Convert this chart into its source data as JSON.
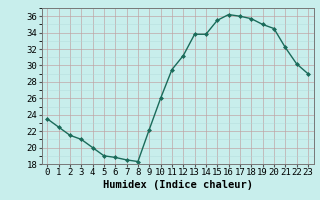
{
  "x": [
    0,
    1,
    2,
    3,
    4,
    5,
    6,
    7,
    8,
    9,
    10,
    11,
    12,
    13,
    14,
    15,
    16,
    17,
    18,
    19,
    20,
    21,
    22,
    23
  ],
  "y": [
    23.5,
    22.5,
    21.5,
    21.0,
    20.0,
    19.0,
    18.8,
    18.5,
    18.3,
    22.2,
    26.0,
    29.5,
    31.2,
    33.8,
    33.8,
    35.5,
    36.2,
    36.0,
    35.7,
    35.0,
    34.5,
    32.2,
    30.2,
    29.0
  ],
  "line_color": "#1a6b5a",
  "marker": "D",
  "marker_size": 2.0,
  "background_color": "#c8eeec",
  "grid_color_minor": "#b0d8d8",
  "grid_color_major": "#c0a0a0",
  "xlabel": "Humidex (Indice chaleur)",
  "ylim": [
    18,
    37
  ],
  "xlim": [
    -0.5,
    23.5
  ],
  "yticks": [
    18,
    20,
    22,
    24,
    26,
    28,
    30,
    32,
    34,
    36
  ],
  "xticks": [
    0,
    1,
    2,
    3,
    4,
    5,
    6,
    7,
    8,
    9,
    10,
    11,
    12,
    13,
    14,
    15,
    16,
    17,
    18,
    19,
    20,
    21,
    22,
    23
  ],
  "xlabel_fontsize": 7.5,
  "tick_fontsize": 6.5,
  "line_width": 1.0
}
